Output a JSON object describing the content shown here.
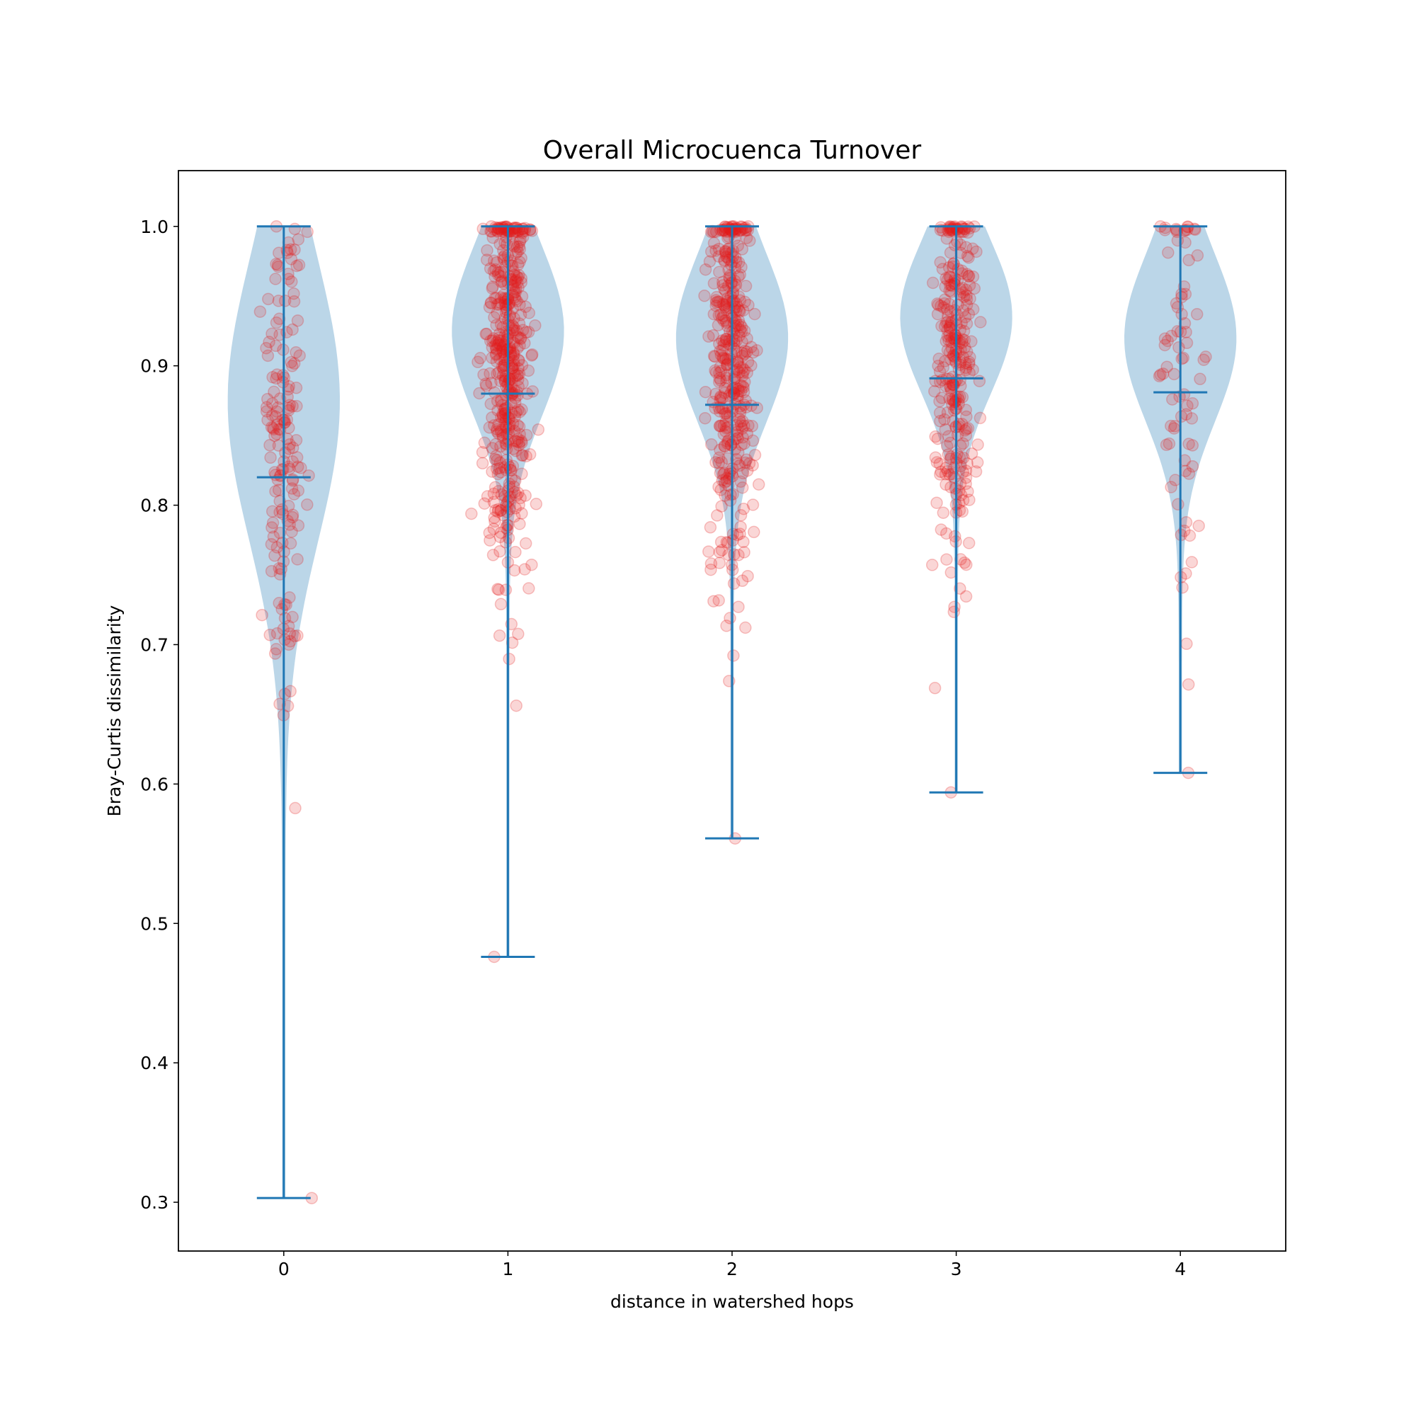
{
  "chart_data": {
    "type": "violin",
    "title": "Overall Microcuenca Turnover",
    "xlabel": "distance in watershed hops",
    "ylabel": "Bray-Curtis dissimilarity",
    "xlim": [
      -0.47,
      4.47
    ],
    "ylim": [
      0.265,
      1.04
    ],
    "x_ticks": [
      "0",
      "1",
      "2",
      "3",
      "4"
    ],
    "y_ticks": [
      "0.3",
      "0.4",
      "0.5",
      "0.6",
      "0.7",
      "0.8",
      "0.9",
      "1.0"
    ],
    "violins": [
      {
        "category": "0",
        "min": 0.303,
        "median": 0.82,
        "max": 1.0,
        "density_peak": 0.875,
        "spread": 0.1
      },
      {
        "category": "1",
        "min": 0.476,
        "median": 0.88,
        "max": 1.0,
        "density_peak": 0.925,
        "spread": 0.06
      },
      {
        "category": "2",
        "min": 0.561,
        "median": 0.872,
        "max": 1.0,
        "density_peak": 0.92,
        "spread": 0.06
      },
      {
        "category": "3",
        "min": 0.594,
        "median": 0.891,
        "max": 1.0,
        "density_peak": 0.935,
        "spread": 0.055
      },
      {
        "category": "4",
        "min": 0.608,
        "median": 0.881,
        "max": 1.0,
        "density_peak": 0.92,
        "spread": 0.06
      }
    ],
    "points": [
      {
        "category": "0",
        "count": 170,
        "min": 0.303,
        "max": 1.0,
        "center": 0.84,
        "sd": 0.1
      },
      {
        "category": "1",
        "count": 470,
        "min": 0.476,
        "max": 1.0,
        "center": 0.905,
        "sd": 0.08
      },
      {
        "category": "2",
        "count": 400,
        "min": 0.561,
        "max": 1.0,
        "center": 0.895,
        "sd": 0.08
      },
      {
        "category": "3",
        "count": 300,
        "min": 0.594,
        "max": 1.0,
        "center": 0.91,
        "sd": 0.075
      },
      {
        "category": "4",
        "count": 80,
        "min": 0.608,
        "max": 1.0,
        "center": 0.89,
        "sd": 0.085
      }
    ],
    "colors": {
      "violin_fill": "#1f77b4",
      "violin_alpha": 0.3,
      "line": "#1f77b4",
      "point": "#e41a1c",
      "point_alpha": 0.18
    },
    "grid": false,
    "legend": "none"
  }
}
